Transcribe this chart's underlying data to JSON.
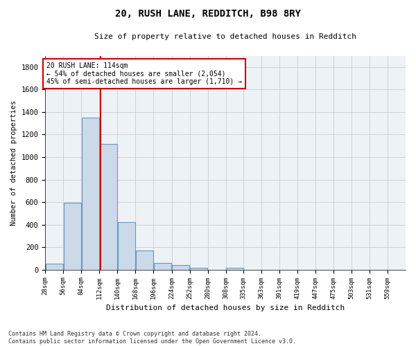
{
  "title": "20, RUSH LANE, REDDITCH, B98 8RY",
  "subtitle": "Size of property relative to detached houses in Redditch",
  "xlabel": "Distribution of detached houses by size in Redditch",
  "ylabel": "Number of detached properties",
  "bar_color": "#ccd9e8",
  "bar_edge_color": "#6699bb",
  "grid_color": "#cccccc",
  "background_color": "#edf2f7",
  "vline_color": "#cc0000",
  "vline_x": 114,
  "annotation_text": "20 RUSH LANE: 114sqm\n← 54% of detached houses are smaller (2,054)\n45% of semi-detached houses are larger (1,710) →",
  "annotation_box_color": "#ffffff",
  "annotation_box_edge": "#cc0000",
  "bin_edges": [
    28,
    56,
    84,
    112,
    140,
    168,
    196,
    224,
    252,
    280,
    308,
    335,
    363,
    391,
    419,
    447,
    475,
    503,
    531,
    559,
    587
  ],
  "bar_heights": [
    55,
    595,
    1350,
    1115,
    425,
    170,
    60,
    40,
    15,
    0,
    15,
    0,
    0,
    0,
    0,
    0,
    0,
    0,
    0,
    0
  ],
  "ylim": [
    0,
    1900
  ],
  "yticks": [
    0,
    200,
    400,
    600,
    800,
    1000,
    1200,
    1400,
    1600,
    1800
  ],
  "footnote": "Contains HM Land Registry data © Crown copyright and database right 2024.\nContains public sector information licensed under the Open Government Licence v3.0.",
  "figsize": [
    6.0,
    5.0
  ],
  "dpi": 100
}
